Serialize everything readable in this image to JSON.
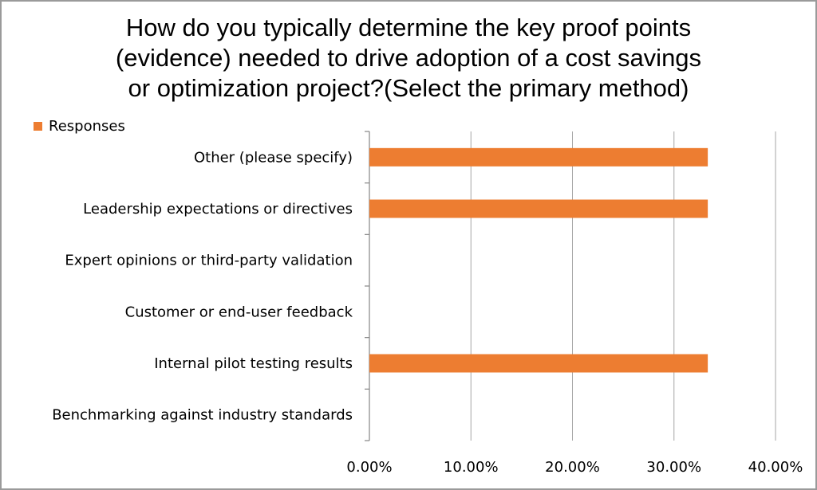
{
  "chart_data": {
    "type": "bar",
    "orientation": "horizontal",
    "title_lines": [
      "How do you typically determine the key proof points",
      "(evidence) needed to drive adoption of a cost savings",
      "or optimization project?(Select the primary method)"
    ],
    "categories": [
      "Other (please specify)",
      "Leadership expectations or directives",
      "Expert opinions or third-party validation",
      "Customer or end-user feedback",
      "Internal pilot testing results",
      "Benchmarking against industry standards"
    ],
    "series": [
      {
        "name": "Responses",
        "values": [
          0.3333,
          0.3333,
          0,
          0,
          0.3333,
          0
        ]
      }
    ],
    "xlim": [
      0,
      0.4
    ],
    "xticks": [
      0,
      0.1,
      0.2,
      0.3,
      0.4
    ],
    "xtick_labels": [
      "0.00%",
      "10.00%",
      "20.00%",
      "30.00%",
      "40.00%"
    ],
    "grid": "vertical",
    "legend_position": "top-left",
    "bar_color": "#ed7d31",
    "grid_color": "#a6a6a6"
  }
}
